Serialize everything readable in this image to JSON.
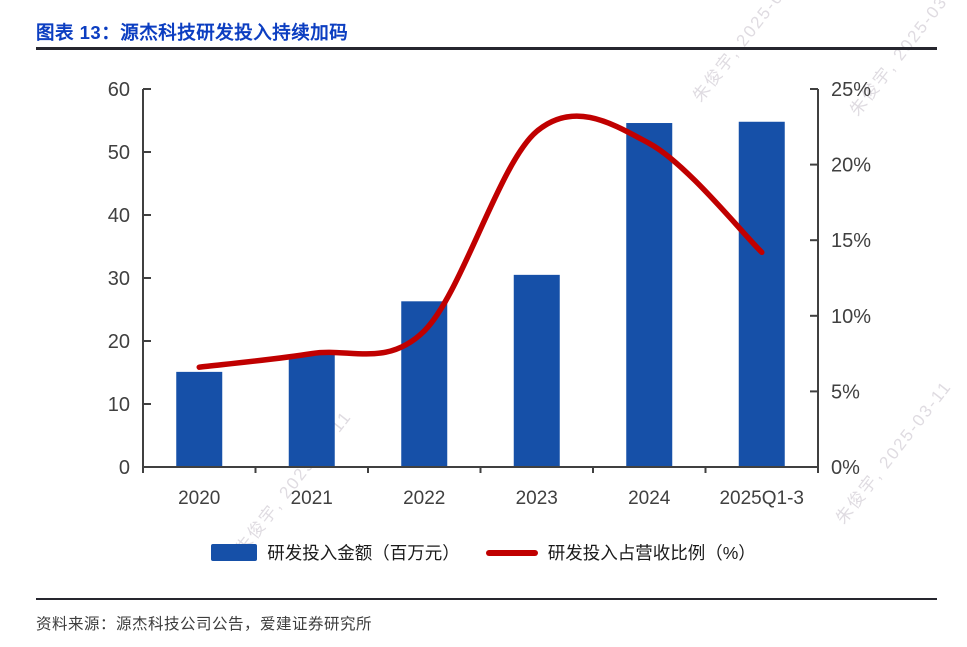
{
  "page": {
    "title": "图表 13：源杰科技研发投入持续加码",
    "source": "资料来源：源杰科技公司公告，爱建证券研究所"
  },
  "watermark": {
    "text": "朱俊宇, 2025-03-11"
  },
  "colors": {
    "title_blue": "#0c3ec1",
    "divider_dark": "#26262e",
    "bar_blue": "#1650a8",
    "line_red": "#c00000",
    "axis_gray": "#404040",
    "label_gray": "#404040",
    "watermark_gray": "#c5bfc9"
  },
  "chart_data": {
    "type": "bar",
    "subtype": "bar+line combo, dual y-axis",
    "title": "图表 13：源杰科技研发投入持续加码",
    "categories": [
      "2020",
      "2021",
      "2022",
      "2023",
      "2024",
      "2025Q1-3"
    ],
    "series": [
      {
        "name": "研发投入金额（百万元）",
        "type": "bar",
        "axis": "left",
        "color": "#1650a8",
        "values": [
          15.1,
          17.8,
          26.3,
          30.5,
          54.6,
          54.8
        ]
      },
      {
        "name": "研发投入占营收比例（%）",
        "type": "line",
        "axis": "right",
        "color": "#c00000",
        "values": [
          6.6,
          7.5,
          9.0,
          22.2,
          21.4,
          14.2
        ]
      }
    ],
    "left_axis": {
      "min": 0,
      "max": 60,
      "step": 10,
      "ticks": [
        "0",
        "10",
        "20",
        "30",
        "40",
        "50",
        "60"
      ]
    },
    "right_axis": {
      "min": 0,
      "max": 25,
      "step": 5,
      "ticks": [
        "0%",
        "5%",
        "10%",
        "15%",
        "20%",
        "25%"
      ]
    },
    "grid": false,
    "legend_position": "bottom"
  }
}
